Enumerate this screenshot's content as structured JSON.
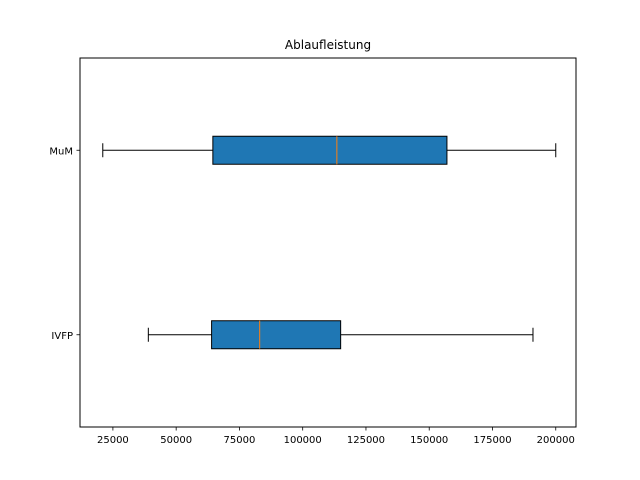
{
  "chart_data": {
    "type": "boxplot",
    "orientation": "horizontal",
    "title": "Ablaufleistung",
    "xlabel": "",
    "ylabel": "",
    "xlim": [
      12000,
      208000
    ],
    "x_ticks": [
      25000,
      50000,
      75000,
      100000,
      125000,
      150000,
      175000,
      200000
    ],
    "x_tick_labels": [
      "25000",
      "50000",
      "75000",
      "100000",
      "125000",
      "150000",
      "175000",
      "200000"
    ],
    "categories": [
      "IVFP",
      "MuM"
    ],
    "boxes": [
      {
        "label": "IVFP",
        "whisker_low": 39000,
        "q1": 64000,
        "median": 83000,
        "q3": 115000,
        "whisker_high": 191000
      },
      {
        "label": "MuM",
        "whisker_low": 21000,
        "q1": 64500,
        "median": 113500,
        "q3": 157000,
        "whisker_high": 200000
      }
    ],
    "box_color": "#1f77b4",
    "median_color": "#ff7f0e",
    "grid": false,
    "legend": "none"
  }
}
